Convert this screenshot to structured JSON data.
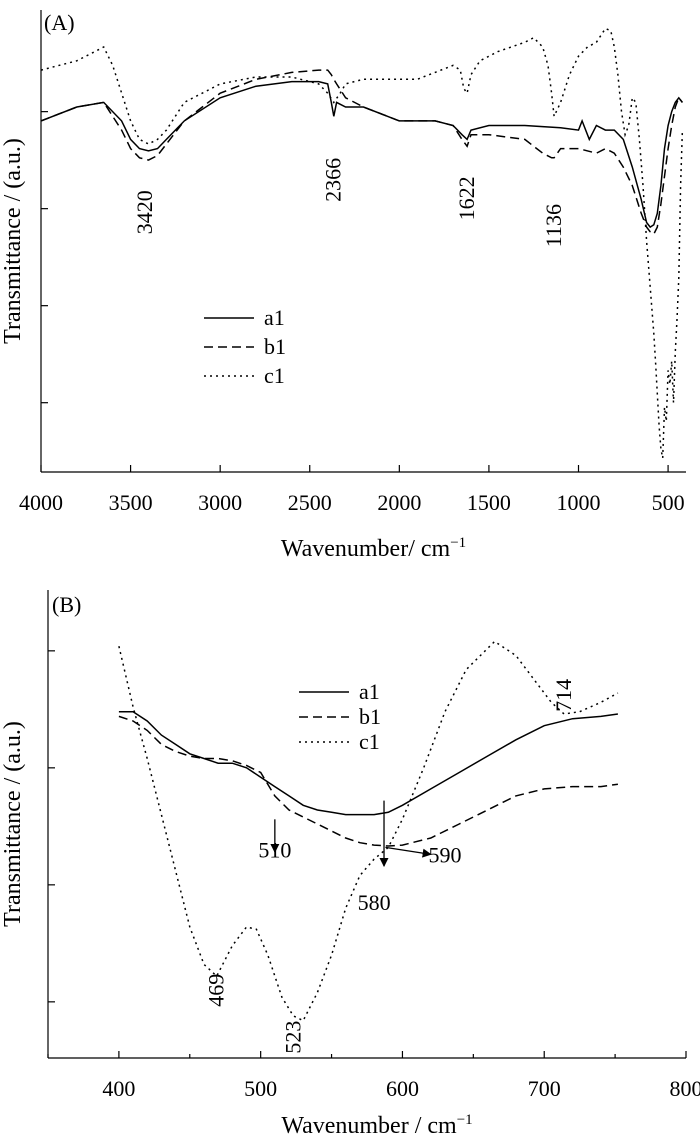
{
  "chart_data": [
    {
      "type": "line",
      "panel_label": "(A)",
      "xlabel": "Wavenumber/ cm",
      "xlabel_sup": "−1",
      "ylabel": "Transmittance / (a.u.)",
      "xlim": [
        4000,
        400
      ],
      "ylim": [
        0,
        100
      ],
      "x_ticks": [
        4000,
        3500,
        3000,
        2500,
        2000,
        1500,
        1000,
        500
      ],
      "x_tick_labels": [
        "4000",
        "3500",
        "3000",
        "2500",
        "2000",
        "1500",
        "1000",
        "500"
      ],
      "y_ticks": [
        15,
        36,
        57,
        78
      ],
      "y_tick_labels_shown": false,
      "legend": {
        "position": "center-left",
        "entries": [
          "a1",
          "b1",
          "c1"
        ]
      },
      "annotations": [
        {
          "text": "3420",
          "x": 3420,
          "y": 61
        },
        {
          "text": "2366",
          "x": 2366,
          "y": 68
        },
        {
          "text": "1622",
          "x": 1622,
          "y": 64
        },
        {
          "text": "1136",
          "x": 1136,
          "y": 58
        }
      ],
      "series": [
        {
          "name": "a1",
          "style": "solid",
          "x": [
            4000,
            3800,
            3650,
            3550,
            3500,
            3450,
            3400,
            3350,
            3300,
            3200,
            3000,
            2800,
            2600,
            2450,
            2400,
            2380,
            2366,
            2350,
            2300,
            2200,
            2000,
            1800,
            1700,
            1650,
            1622,
            1600,
            1500,
            1300,
            1100,
            1000,
            980,
            940,
            900,
            850,
            800,
            750,
            700,
            650,
            620,
            600,
            580,
            560,
            540,
            520,
            500,
            480,
            460,
            440,
            420
          ],
          "y": [
            76,
            79,
            80,
            76,
            72,
            70,
            69.5,
            70,
            72,
            76,
            81,
            83.5,
            84.5,
            84.5,
            84,
            80,
            77,
            80,
            79,
            79,
            76,
            76,
            75,
            73,
            72,
            74,
            75,
            75,
            74.5,
            74,
            76,
            72,
            75,
            74,
            74,
            72,
            66,
            59,
            54,
            53,
            53.5,
            56,
            62,
            70,
            75,
            78,
            80,
            81,
            80
          ]
        },
        {
          "name": "b1",
          "style": "dashed",
          "x": [
            4000,
            3800,
            3650,
            3550,
            3500,
            3450,
            3400,
            3350,
            3300,
            3200,
            3000,
            2800,
            2600,
            2450,
            2400,
            2380,
            2366,
            2350,
            2300,
            2200,
            2000,
            1800,
            1700,
            1650,
            1622,
            1600,
            1500,
            1300,
            1200,
            1150,
            1136,
            1100,
            1000,
            900,
            850,
            800,
            750,
            700,
            650,
            620,
            600,
            580,
            560,
            540,
            520,
            500,
            480,
            460,
            440,
            420
          ],
          "y": [
            76,
            79,
            80,
            74,
            70,
            68,
            67.5,
            68.5,
            71,
            76,
            82,
            85,
            86.5,
            87,
            87,
            86,
            85,
            84,
            81,
            79,
            76,
            76,
            75,
            72,
            70.5,
            73,
            73,
            72,
            69,
            68,
            68,
            70,
            70,
            69,
            70,
            69,
            66,
            62,
            56,
            53,
            52,
            51.5,
            53,
            58,
            64,
            70,
            75,
            79,
            81,
            80
          ]
        },
        {
          "name": "c1",
          "style": "dotted",
          "x": [
            4000,
            3800,
            3700,
            3650,
            3600,
            3500,
            3450,
            3400,
            3350,
            3300,
            3200,
            3000,
            2800,
            2600,
            2450,
            2400,
            2366,
            2330,
            2300,
            2200,
            2100,
            1900,
            1700,
            1660,
            1640,
            1622,
            1600,
            1550,
            1450,
            1300,
            1250,
            1200,
            1170,
            1150,
            1136,
            1100,
            1050,
            1000,
            950,
            900,
            850,
            820,
            800,
            780,
            760,
            740,
            720,
            700,
            680,
            660,
            640,
            620,
            600,
            580,
            570,
            560,
            550,
            540,
            530,
            520,
            510,
            500,
            490,
            480,
            470,
            460,
            450,
            440,
            430,
            420
          ],
          "y": [
            87,
            89,
            91,
            92,
            88,
            76,
            72,
            71,
            72,
            74,
            80,
            84,
            85.5,
            85.5,
            84,
            82,
            80,
            82,
            84,
            85,
            85,
            85,
            88,
            87,
            83,
            82,
            86,
            89,
            91,
            93,
            94,
            92,
            88,
            82,
            77,
            80,
            86,
            90,
            92,
            93,
            96,
            95.5,
            92,
            86,
            78,
            73,
            75,
            81,
            80,
            72,
            62,
            50,
            40,
            30,
            24,
            17,
            10,
            5,
            3,
            14,
            11,
            22,
            19,
            24,
            15,
            26,
            33,
            42,
            62,
            74
          ]
        }
      ]
    },
    {
      "type": "line",
      "panel_label": "(B)",
      "xlabel": "Wavenumber / cm",
      "xlabel_sup": "−1",
      "ylabel": "Transmittance / (a.u.)",
      "xlim": [
        350,
        800
      ],
      "ylim": [
        0,
        100
      ],
      "x_ticks": [
        400,
        500,
        600,
        700,
        800
      ],
      "x_tick_labels": [
        "400",
        "500",
        "600",
        "700",
        "800"
      ],
      "y_ticks": [
        12,
        37,
        62,
        87
      ],
      "y_tick_labels_shown": false,
      "legend": {
        "position": "top-center",
        "entries": [
          "a1",
          "b1",
          "c1"
        ]
      },
      "annotations": [
        {
          "text": "510",
          "x": 510,
          "y": 48,
          "arrow_from": [
            510,
            51
          ],
          "arrow_to": [
            510,
            44
          ]
        },
        {
          "text": "580",
          "x": 580,
          "y": 38,
          "arrow_from": [
            587,
            55
          ],
          "arrow_to": [
            587,
            41
          ]
        },
        {
          "text": "590",
          "x": 623,
          "y": 43.5,
          "arrow_from": [
            588,
            45
          ],
          "arrow_to": [
            620,
            43.5
          ]
        },
        {
          "text": "469",
          "x": 469,
          "y": 18
        },
        {
          "text": "523",
          "x": 523,
          "y": 8
        },
        {
          "text": "714",
          "x": 714,
          "y": 81
        }
      ],
      "series": [
        {
          "name": "a1",
          "style": "solid",
          "x": [
            400,
            410,
            420,
            430,
            440,
            450,
            460,
            470,
            480,
            490,
            500,
            510,
            520,
            530,
            540,
            550,
            560,
            570,
            580,
            590,
            600,
            620,
            640,
            660,
            680,
            700,
            720,
            740,
            752
          ],
          "y": [
            74,
            74,
            72,
            69,
            67,
            65,
            64,
            63,
            63,
            62,
            60,
            58,
            56,
            54,
            53,
            52.5,
            52,
            52,
            52,
            52.5,
            54,
            57.5,
            61,
            64.5,
            68,
            71,
            72.5,
            73,
            73.5
          ]
        },
        {
          "name": "b1",
          "style": "dashed",
          "x": [
            400,
            410,
            420,
            430,
            440,
            450,
            460,
            470,
            480,
            490,
            500,
            510,
            520,
            530,
            540,
            550,
            560,
            570,
            580,
            590,
            600,
            620,
            640,
            660,
            680,
            700,
            720,
            740,
            752
          ],
          "y": [
            73,
            72,
            70,
            67,
            65.5,
            64.5,
            64,
            64,
            63.5,
            62.5,
            61,
            56,
            53,
            51.5,
            50,
            48.5,
            47,
            46,
            45.5,
            45.3,
            45.5,
            47,
            50,
            53,
            56,
            57.5,
            58,
            58,
            58.5
          ]
        },
        {
          "name": "c1",
          "style": "dotted",
          "x": [
            400,
            410,
            420,
            430,
            440,
            450,
            460,
            469,
            480,
            490,
            497,
            505,
            515,
            523,
            530,
            540,
            550,
            560,
            570,
            580,
            590,
            600,
            615,
            630,
            645,
            665,
            680,
            695,
            705,
            714,
            725,
            740,
            752
          ],
          "y": [
            88,
            75,
            64,
            52,
            40,
            28,
            20,
            17.5,
            24,
            28,
            27.5,
            22,
            13,
            9,
            8,
            14,
            22,
            32,
            39,
            42.5,
            45,
            51,
            62,
            74,
            83,
            89,
            86,
            80,
            76,
            73.5,
            74,
            76,
            78
          ]
        }
      ]
    }
  ]
}
